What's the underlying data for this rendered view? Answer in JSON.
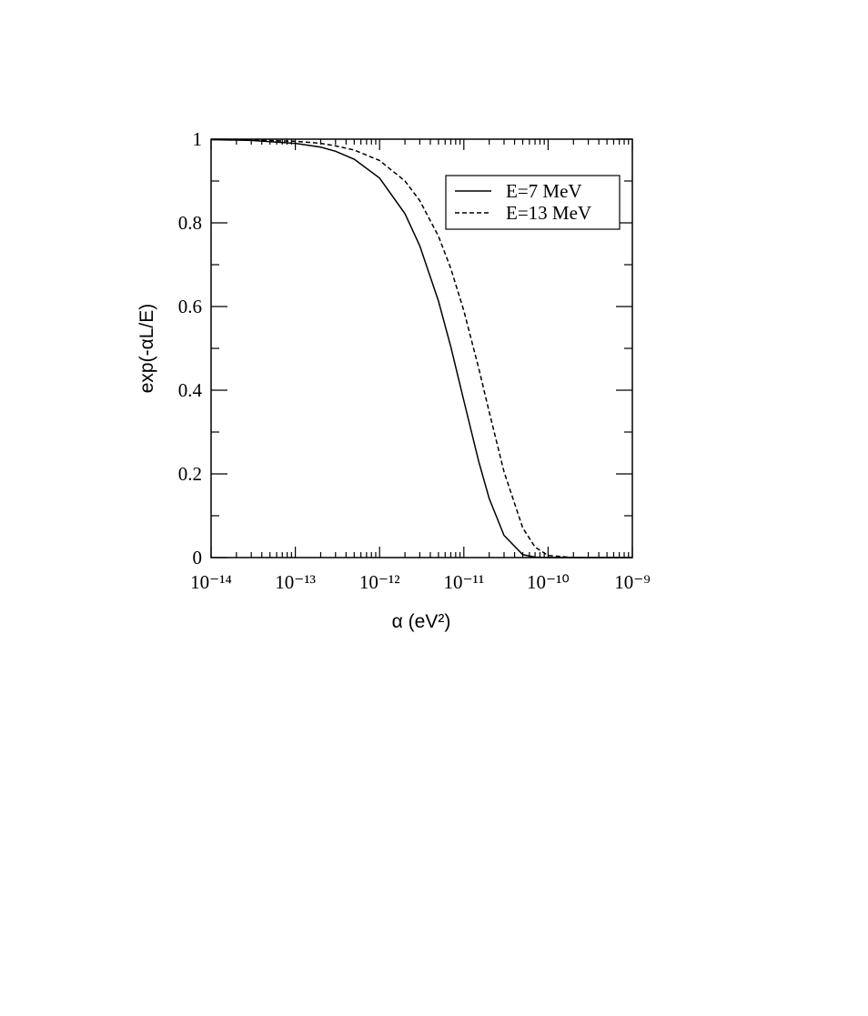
{
  "chart_data": {
    "type": "line",
    "xlabel": "α (eV²)",
    "ylabel": "exp(-αL/E)",
    "xscale": "log",
    "x": [
      1e-14,
      3e-14,
      1e-13,
      2e-13,
      3e-13,
      5e-13,
      1e-12,
      2e-12,
      3e-12,
      5e-12,
      7e-12,
      1e-11,
      1.5e-11,
      2e-11,
      3e-11,
      5e-11,
      7e-11,
      1e-10,
      2e-10,
      1e-09
    ],
    "series": [
      {
        "name": "E=7 MeV",
        "color": "#000000",
        "dash": "none",
        "values": [
          0.999,
          0.997,
          0.99,
          0.981,
          0.971,
          0.952,
          0.907,
          0.822,
          0.745,
          0.613,
          0.504,
          0.375,
          0.23,
          0.141,
          0.053,
          0.007,
          0.001,
          0,
          0,
          0
        ]
      },
      {
        "name": "E=13 MeV",
        "color": "#000000",
        "dash": "5,3",
        "values": [
          0.999,
          0.998,
          0.995,
          0.99,
          0.984,
          0.974,
          0.949,
          0.9,
          0.853,
          0.768,
          0.691,
          0.59,
          0.453,
          0.348,
          0.205,
          0.071,
          0.025,
          0.005,
          0,
          0
        ]
      }
    ],
    "xlim": [
      1e-14,
      1e-09
    ],
    "xticks": [
      {
        "value": 1e-14,
        "label": "10⁻¹⁴"
      },
      {
        "value": 1e-13,
        "label": "10⁻¹³"
      },
      {
        "value": 1e-12,
        "label": "10⁻¹²"
      },
      {
        "value": 1e-11,
        "label": "10⁻¹¹"
      },
      {
        "value": 1e-10,
        "label": "10⁻¹⁰"
      },
      {
        "value": 1e-09,
        "label": "10⁻⁹"
      }
    ],
    "xminorticks": [
      2e-14,
      3e-14,
      4e-14,
      5e-14,
      6e-14,
      7e-14,
      8e-14,
      9e-14,
      2e-13,
      3e-13,
      4e-13,
      5e-13,
      6e-13,
      7e-13,
      8e-13,
      9e-13,
      2e-12,
      3e-12,
      4e-12,
      5e-12,
      6e-12,
      7e-12,
      8e-12,
      9e-12,
      2e-11,
      3e-11,
      4e-11,
      5e-11,
      6e-11,
      7e-11,
      8e-11,
      9e-11,
      2e-10,
      3e-10,
      4e-10,
      5e-10,
      6e-10,
      7e-10,
      8e-10,
      9e-10
    ],
    "ylim": [
      0,
      1
    ],
    "yticks": [
      0,
      0.2,
      0.4,
      0.6,
      0.8,
      1
    ],
    "yminorticks": [
      0.1,
      0.3,
      0.5,
      0.7,
      0.9
    ],
    "grid": false,
    "legend": "upper right"
  }
}
